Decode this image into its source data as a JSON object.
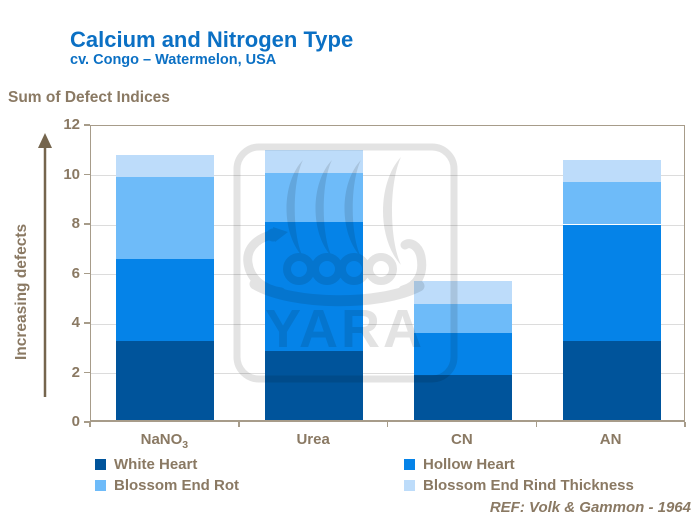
{
  "header": {
    "title": "Calcium and Nitrogen Type",
    "subtitle": "cv. Congo – Watermelon, USA"
  },
  "footer": {
    "ref": "REF: Volk & Gammon - 1964"
  },
  "watermark_text": "YARA",
  "colors": {
    "title_blue": "#0b70c4",
    "text_brown": "#8a7963",
    "axis_tan": "#a79c8a",
    "gridline": "#dcdcdc",
    "watermark_gray": "#e3e3e3"
  },
  "chart_data": {
    "type": "bar",
    "stacked": true,
    "title": "Calcium and Nitrogen Type",
    "subtitle": "cv. Congo – Watermelon, USA",
    "y_axis_title": "Sum of Defect Indices",
    "y_axis_arrow_label": "Increasing defects",
    "xlabel": "",
    "ylabel": "Sum of Defect Indices",
    "categories": [
      "NaNO3",
      "Urea",
      "CN",
      "AN"
    ],
    "category_display": [
      {
        "base": "NaNO",
        "sub": "3"
      },
      {
        "base": "Urea",
        "sub": ""
      },
      {
        "base": "CN",
        "sub": ""
      },
      {
        "base": "AN",
        "sub": ""
      }
    ],
    "ylim": [
      0,
      12
    ],
    "ytick_step": 2,
    "grid": true,
    "legend_position": "bottom",
    "series": [
      {
        "name": "White Heart",
        "color": "#00549b",
        "values": [
          3.2,
          2.8,
          1.8,
          3.2
        ]
      },
      {
        "name": "Hollow Heart",
        "color": "#0583e8",
        "values": [
          3.3,
          5.2,
          1.7,
          4.7
        ]
      },
      {
        "name": "Blossom End Rot",
        "color": "#6ebbf9",
        "values": [
          3.3,
          2.0,
          1.2,
          1.7
        ]
      },
      {
        "name": "Blossom End Rind Thickness",
        "color": "#bddcfa",
        "values": [
          0.9,
          0.9,
          0.9,
          0.9
        ]
      }
    ],
    "stack_totals": [
      10.7,
      10.9,
      5.6,
      10.5
    ],
    "reference": "REF: Volk & Gammon - 1964"
  }
}
